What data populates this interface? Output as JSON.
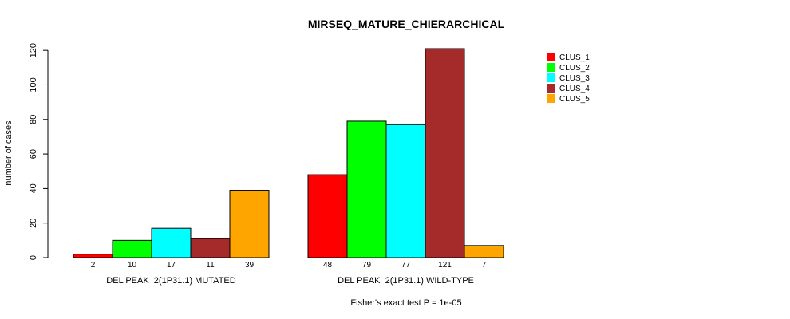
{
  "chart_data": {
    "type": "bar",
    "title": "MIRSEQ_MATURE_CHIERARCHICAL",
    "ylabel": "number of cases",
    "xlabel": "",
    "footnote": "Fisher's exact test P = 1e-05",
    "ylim": [
      0,
      121
    ],
    "yticks": [
      0,
      20,
      40,
      60,
      80,
      100,
      120
    ],
    "groups": [
      "DEL PEAK  2(1P31.1) MUTATED",
      "DEL PEAK  2(1P31.1) WILD-TYPE"
    ],
    "series": [
      {
        "name": "CLUS_1",
        "color": "#ff0000",
        "values": [
          2,
          48
        ]
      },
      {
        "name": "CLUS_2",
        "color": "#00ff00",
        "values": [
          10,
          79
        ]
      },
      {
        "name": "CLUS_3",
        "color": "#00ffff",
        "values": [
          17,
          77
        ]
      },
      {
        "name": "CLUS_4",
        "color": "#a52a2a",
        "values": [
          11,
          121
        ]
      },
      {
        "name": "CLUS_5",
        "color": "#ffa500",
        "values": [
          39,
          7
        ]
      }
    ],
    "legend_position": "top-right"
  }
}
